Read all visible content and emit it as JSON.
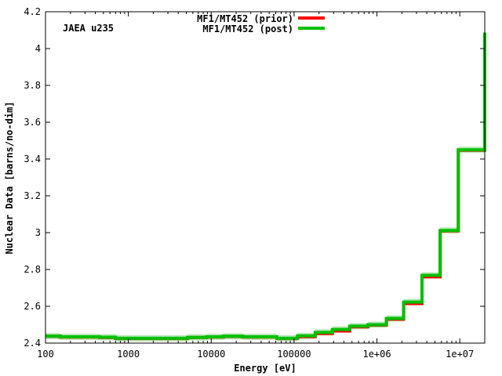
{
  "chart_data": {
    "type": "line",
    "title": "",
    "annotation": "JAEA u235",
    "xlabel": "Energy [eV]",
    "ylabel": "Nuclear Data [barns/no-dim]",
    "xscale": "log",
    "xlim": [
      100,
      20000000
    ],
    "ylim": [
      2.4,
      4.2
    ],
    "xticks": [
      100,
      1000,
      10000,
      100000,
      1000000,
      10000000
    ],
    "xtick_labels": [
      "100",
      "1000",
      "10000",
      "100000",
      "1e+06",
      "1e+07"
    ],
    "yticks": [
      2.4,
      2.6,
      2.8,
      3.0,
      3.2,
      3.4,
      3.6,
      3.8,
      4.0,
      4.2
    ],
    "ytick_labels": [
      "2.4",
      "2.6",
      "2.8",
      "3",
      "3.2",
      "3.4",
      "3.6",
      "3.8",
      "4",
      "4.2"
    ],
    "grid": false,
    "legend_position": "top-right",
    "colors": {
      "prior": "#ff0000",
      "post": "#00c000",
      "uncertainty": "#b8e8b8"
    },
    "step_edges": [
      100,
      150,
      450,
      700,
      3200,
      5200,
      8800,
      14000,
      24000,
      62000,
      110000,
      180000,
      290000,
      470000,
      780000,
      1300000,
      2100000,
      3500000,
      5800000,
      9600000,
      20000000
    ],
    "series": [
      {
        "name": "MF1/MT452 (prior)",
        "values": [
          2.437,
          2.433,
          2.43,
          2.425,
          2.425,
          2.43,
          2.433,
          2.436,
          2.433,
          2.425,
          2.435,
          2.452,
          2.466,
          2.488,
          2.498,
          2.53,
          2.615,
          2.76,
          3.01,
          3.448,
          4.085
        ]
      },
      {
        "name": "MF1/MT452 (post)",
        "values": [
          2.438,
          2.434,
          2.432,
          2.426,
          2.426,
          2.431,
          2.434,
          2.437,
          2.434,
          2.426,
          2.439,
          2.458,
          2.474,
          2.492,
          2.5,
          2.534,
          2.623,
          2.768,
          3.012,
          3.45,
          4.087
        ]
      }
    ]
  }
}
